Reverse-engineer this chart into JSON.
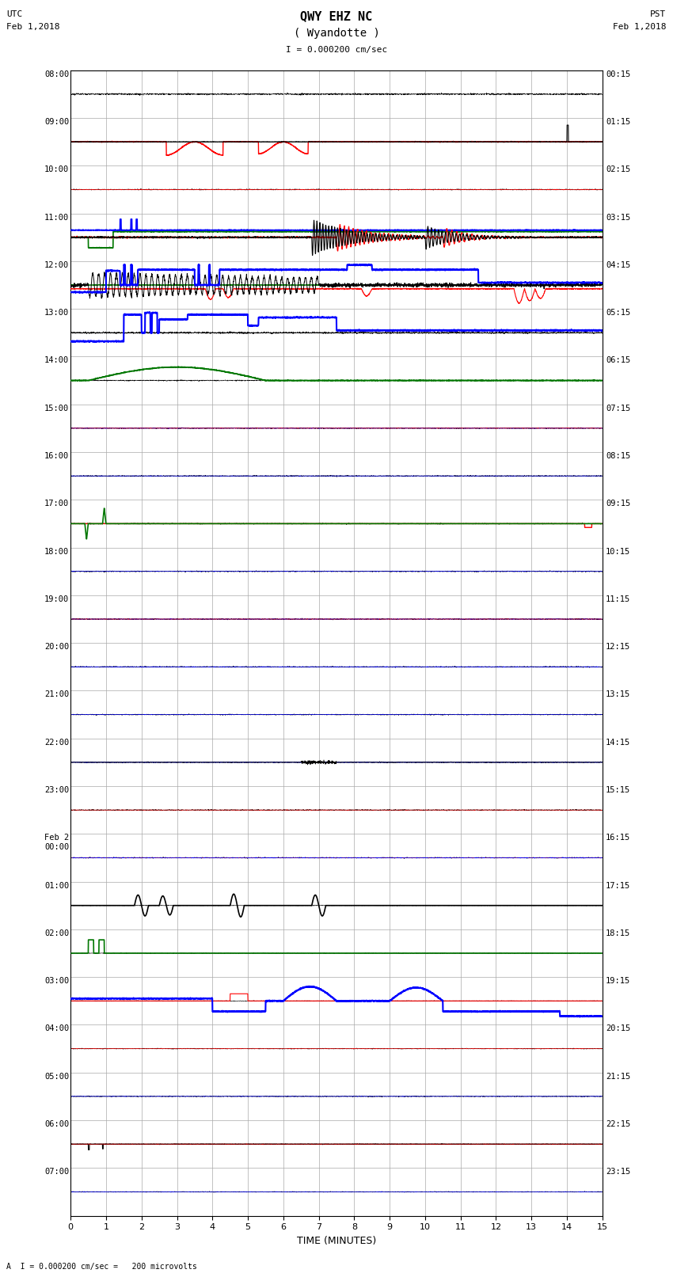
{
  "title_line1": "QWY EHZ NC",
  "title_line2": "( Wyandotte )",
  "scale_label": "I = 0.000200 cm/sec",
  "left_label_line1": "UTC",
  "left_label_line2": "Feb 1,2018",
  "right_label_line1": "PST",
  "right_label_line2": "Feb 1,2018",
  "utc_labels": [
    "08:00",
    "09:00",
    "10:00",
    "11:00",
    "12:00",
    "13:00",
    "14:00",
    "15:00",
    "16:00",
    "17:00",
    "18:00",
    "19:00",
    "20:00",
    "21:00",
    "22:00",
    "23:00",
    "Feb 2\n00:00",
    "01:00",
    "02:00",
    "03:00",
    "04:00",
    "05:00",
    "06:00",
    "07:00"
  ],
  "pst_labels": [
    "00:15",
    "01:15",
    "02:15",
    "03:15",
    "04:15",
    "05:15",
    "06:15",
    "07:15",
    "08:15",
    "09:15",
    "10:15",
    "11:15",
    "12:15",
    "13:15",
    "14:15",
    "15:15",
    "16:15",
    "17:15",
    "18:15",
    "19:15",
    "20:15",
    "21:15",
    "22:15",
    "23:15"
  ],
  "xlabel": "TIME (MINUTES)",
  "xticks": [
    0,
    1,
    2,
    3,
    4,
    5,
    6,
    7,
    8,
    9,
    10,
    11,
    12,
    13,
    14,
    15
  ],
  "bottom_note": "A  I = 0.000200 cm/sec =   200 microvolts",
  "total_rows": 24,
  "background_color": "#ffffff",
  "grid_color": "#aaaaaa",
  "fig_width": 8.5,
  "fig_height": 16.13
}
